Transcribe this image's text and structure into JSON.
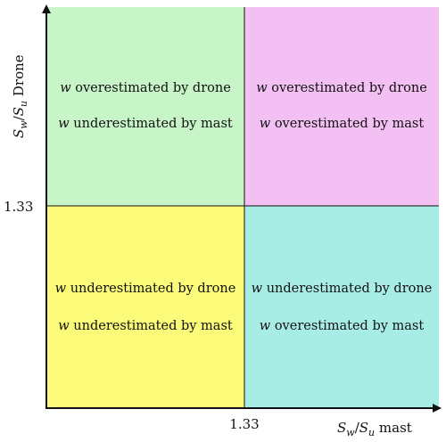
{
  "quadrants": {
    "top_left": {
      "color": "#c8f5c8",
      "line1": {
        "var": "w",
        "text": " overestimated by drone"
      },
      "line2": {
        "var": "w",
        "text": " underestimated by mast"
      }
    },
    "top_right": {
      "color": "#f3c0f3",
      "line1": {
        "var": "w",
        "text": " overestimated by drone"
      },
      "line2": {
        "var": "w",
        "text": " overestimated by mast"
      }
    },
    "bottom_left": {
      "color": "#fbfb79",
      "line1": {
        "var": "w",
        "text": " underestimated by drone"
      },
      "line2": {
        "var": "w",
        "text": " underestimated by mast"
      }
    },
    "bottom_right": {
      "color": "#a7ede6",
      "line1": {
        "var": "w",
        "text": " underestimated by drone"
      },
      "line2": {
        "var": "w",
        "text": " overestimated by mast"
      }
    }
  },
  "x_tick": "1.33",
  "y_tick": "1.33",
  "x_axis_label": {
    "S1": "S",
    "sub1": "w",
    "slash": "/",
    "S2": "S",
    "sub2": "u",
    "rest": " mast"
  },
  "y_axis_label": {
    "S1": "S",
    "sub1": "w",
    "slash": "/",
    "S2": "S",
    "sub2": "u",
    "rest": " Drone"
  }
}
